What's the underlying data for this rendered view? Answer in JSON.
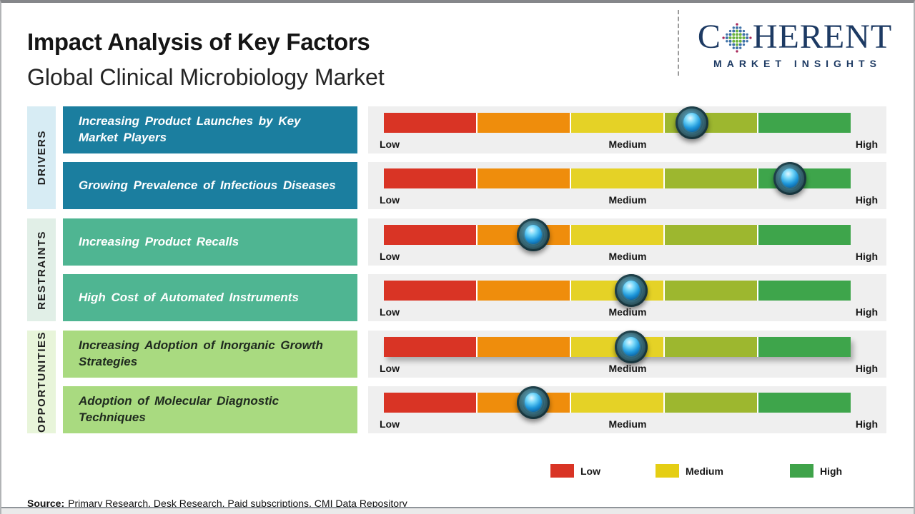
{
  "header": {
    "title": "Impact Analysis of Key Factors",
    "subtitle": "Global Clinical Microbiology Market",
    "brand": {
      "word_prefix": "C",
      "word_suffix": "HERENT",
      "tagline": "MARKET INSIGHTS",
      "color": "#1d3a63"
    }
  },
  "chart_data": {
    "type": "bar",
    "title": "Impact Analysis of Key Factors",
    "subtitle": "Global Clinical Microbiology Market",
    "scale_labels": [
      "Low",
      "Medium",
      "High"
    ],
    "scale_range": [
      0,
      100
    ],
    "segment_colors": [
      "#d93425",
      "#ef8d0c",
      "#e5d226",
      "#9db72f",
      "#3ea54b"
    ],
    "row_background": "#efefef",
    "groups": [
      {
        "label": "DRIVERS",
        "strip_color": "#d7ecf4",
        "box_color": "#1b7e9f",
        "text_color": "#ffffff",
        "factors": [
          {
            "name": "Increasing Product Launches by Key Market Players",
            "impact_level": "Medium-High",
            "impact_pct": 66
          },
          {
            "name": "Growing Prevalence of Infectious Diseases",
            "impact_level": "High",
            "impact_pct": 87
          }
        ]
      },
      {
        "label": "RESTRAINTS",
        "strip_color": "#e1efe7",
        "box_color": "#4fb592",
        "text_color": "#ffffff",
        "factors": [
          {
            "name": "Increasing Product Recalls",
            "impact_level": "Low-Medium",
            "impact_pct": 32
          },
          {
            "name": "High Cost of Automated Instruments",
            "impact_level": "Medium",
            "impact_pct": 53
          }
        ]
      },
      {
        "label": "OPPORTUNITIES",
        "strip_color": "#e8f5da",
        "box_color": "#a9da80",
        "text_color": "#1f2a1f",
        "factors": [
          {
            "name": "Increasing Adoption of Inorganic Growth Strategies",
            "impact_level": "Medium",
            "impact_pct": 53
          },
          {
            "name": "Adoption of Molecular Diagnostic Techniques",
            "impact_level": "Low-Medium",
            "impact_pct": 32
          }
        ]
      }
    ]
  },
  "legend": {
    "items": [
      {
        "label": "Low",
        "color": "#d93425"
      },
      {
        "label": "Medium",
        "color": "#e5ce14"
      },
      {
        "label": "High",
        "color": "#3fa34a"
      }
    ]
  },
  "source": {
    "label": "Source:",
    "text": "Primary Research, Desk Research, Paid subscriptions, CMI Data Repository"
  }
}
